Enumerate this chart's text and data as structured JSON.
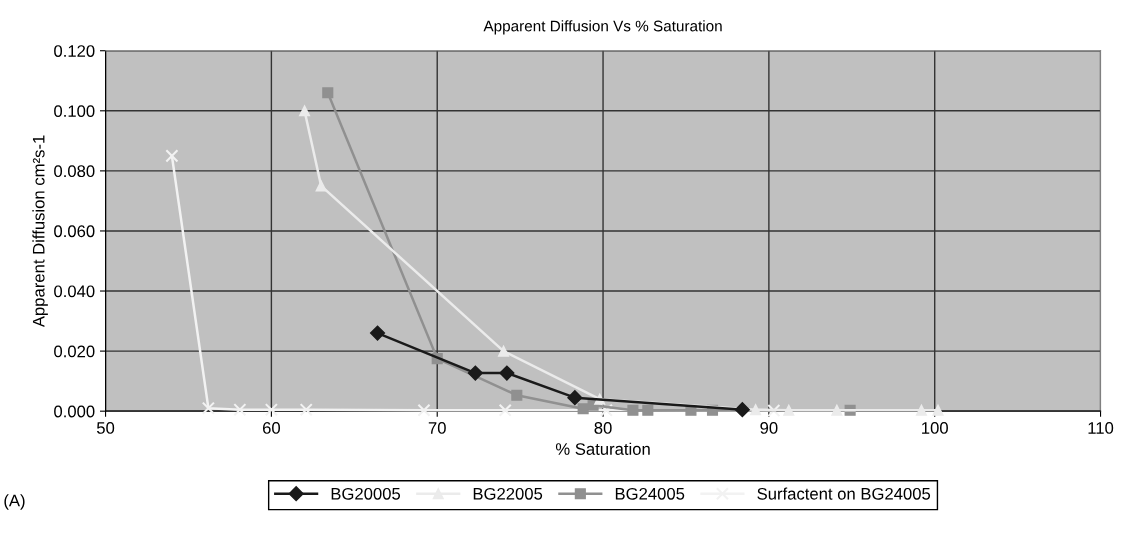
{
  "chart_data": {
    "type": "line",
    "title": "Apparent Diffusion Vs % Saturation",
    "xlabel": "% Saturation",
    "ylabel": "Apparent Diffusion cm²s-1",
    "xlim": [
      50,
      110
    ],
    "xticks": [
      50,
      60,
      70,
      80,
      90,
      100,
      110
    ],
    "ylim": [
      0,
      0.12
    ],
    "yticks": [
      {
        "value": 0,
        "label": "0.000"
      },
      {
        "value": 0.02,
        "label": "0.020"
      },
      {
        "value": 0.04,
        "label": "0.040"
      },
      {
        "value": 0.06,
        "label": "0.060"
      },
      {
        "value": 0.08,
        "label": "0.080"
      },
      {
        "value": 0.1,
        "label": "0.100"
      },
      {
        "value": 0.12,
        "label": "0.120"
      }
    ],
    "grid": true,
    "legend": "bottom",
    "annotations": [
      "(A)"
    ],
    "series": [
      {
        "name": "BG20005",
        "color": "#1a1a1a",
        "marker": "diamond",
        "x": [
          66.4,
          72.3,
          74.2,
          78.3,
          88.4
        ],
        "values": [
          0.026,
          0.0127,
          0.0127,
          0.0045,
          0.0005
        ]
      },
      {
        "name": "BG22005",
        "color": "#ebebeb",
        "marker": "triangle",
        "x": [
          62.0,
          63.0,
          74.0,
          79.8,
          89.2,
          91.2,
          94.1,
          99.2,
          100.2
        ],
        "values": [
          0.1,
          0.075,
          0.02,
          0.004,
          0.0005,
          0.0003,
          0.0003,
          0.0003,
          0.0003
        ]
      },
      {
        "name": "BG24005",
        "color": "#909090",
        "marker": "square",
        "x": [
          63.4,
          70.0,
          74.8,
          78.8,
          79.4,
          81.8,
          82.7,
          85.3,
          86.6,
          94.9
        ],
        "values": [
          0.106,
          0.0175,
          0.0053,
          0.0008,
          0.002,
          0.0003,
          0.0003,
          0.0003,
          0.0003,
          0.0003
        ]
      },
      {
        "name": "Surfactent on BG24005",
        "color": "#f2f2f2",
        "marker": "cross",
        "x": [
          54.0,
          56.2,
          58.1,
          60.0,
          62.1,
          69.2,
          74.1,
          80.2,
          90.3
        ],
        "values": [
          0.085,
          0.001,
          0.0005,
          0.0005,
          0.0005,
          0.0003,
          0.0003,
          0.0003,
          0.0002
        ]
      }
    ]
  }
}
